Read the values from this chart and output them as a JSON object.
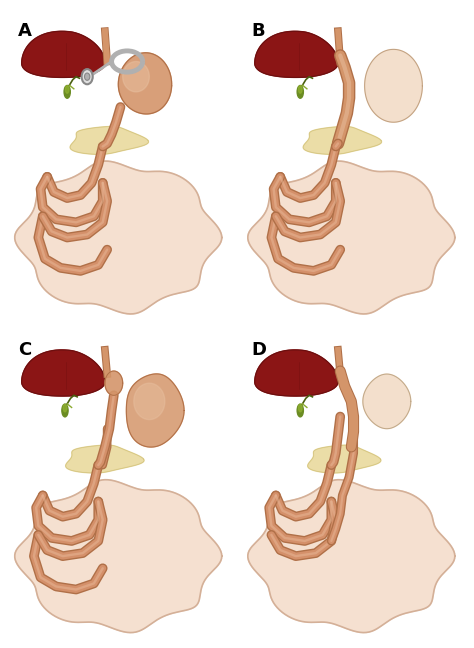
{
  "background_color": "#ffffff",
  "panel_labels": [
    "A",
    "B",
    "C",
    "D"
  ],
  "label_fontsize": 13,
  "label_fontweight": "bold",
  "liver_color": "#8B1515",
  "liver_dark": "#5A0A0A",
  "liver_edge": "#6B0F0F",
  "stomach_color": "#D4956A",
  "stomach_light": "#E8C0A0",
  "stomach_very_light": "#F0D8C0",
  "intestine_color": "#D4906A",
  "intestine_inner": "#E8B898",
  "intestine_border": "#B07048",
  "gallbladder_color": "#6B8C23",
  "gallbladder_light": "#90B030",
  "gallbladder_dark": "#4A6010",
  "bile_duct_color": "#8BAA30",
  "pancreas_color": "#E8D898",
  "pancreas_edge": "#C8B870",
  "band_color": "#B0B0B0",
  "band_light": "#E0E0E0",
  "band_dark": "#888888",
  "colon_fill": "#F2D8C8",
  "colon_edge": "#D4A888",
  "colon_blob_fill": "#F5E0D0",
  "colon_blob_edge": "#D4B098",
  "fig_bg": "#ffffff",
  "panel_bg": "#ffffff",
  "esophagus_color": "#D4906A",
  "duodenum_color": "#D4906A"
}
